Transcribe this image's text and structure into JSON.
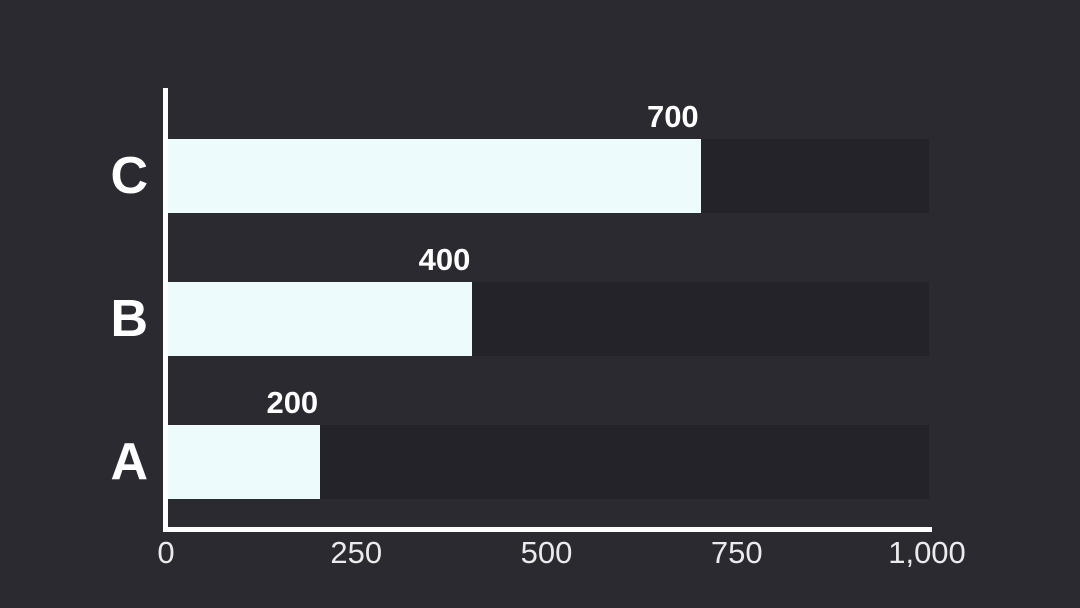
{
  "chart_data": {
    "type": "bar",
    "orientation": "horizontal",
    "title": "",
    "categories": [
      "C",
      "B",
      "A"
    ],
    "values": [
      700,
      400,
      200
    ],
    "value_labels": [
      "700",
      "400",
      "200"
    ],
    "series": [
      {
        "name": "values",
        "values": [
          700,
          400,
          200
        ]
      }
    ],
    "xlim": [
      0,
      1000
    ],
    "x_ticks": [
      {
        "value": 0,
        "label": "0"
      },
      {
        "value": 250,
        "label": "250"
      },
      {
        "value": 500,
        "label": "500"
      },
      {
        "value": 750,
        "label": "750"
      },
      {
        "value": 1000,
        "label": "1,000"
      }
    ],
    "xlabel": "",
    "ylabel": "",
    "grid": false,
    "legend": false,
    "bar_track_full_width": true,
    "colors": {
      "background": "#2a2a30",
      "bar_fill": "#eefbfd",
      "bar_track": "#232329",
      "axis_line": "#fdfdfd",
      "category_text": "#ffffff",
      "value_text": "#ffffff",
      "tick_text": "#ebebeb"
    }
  }
}
